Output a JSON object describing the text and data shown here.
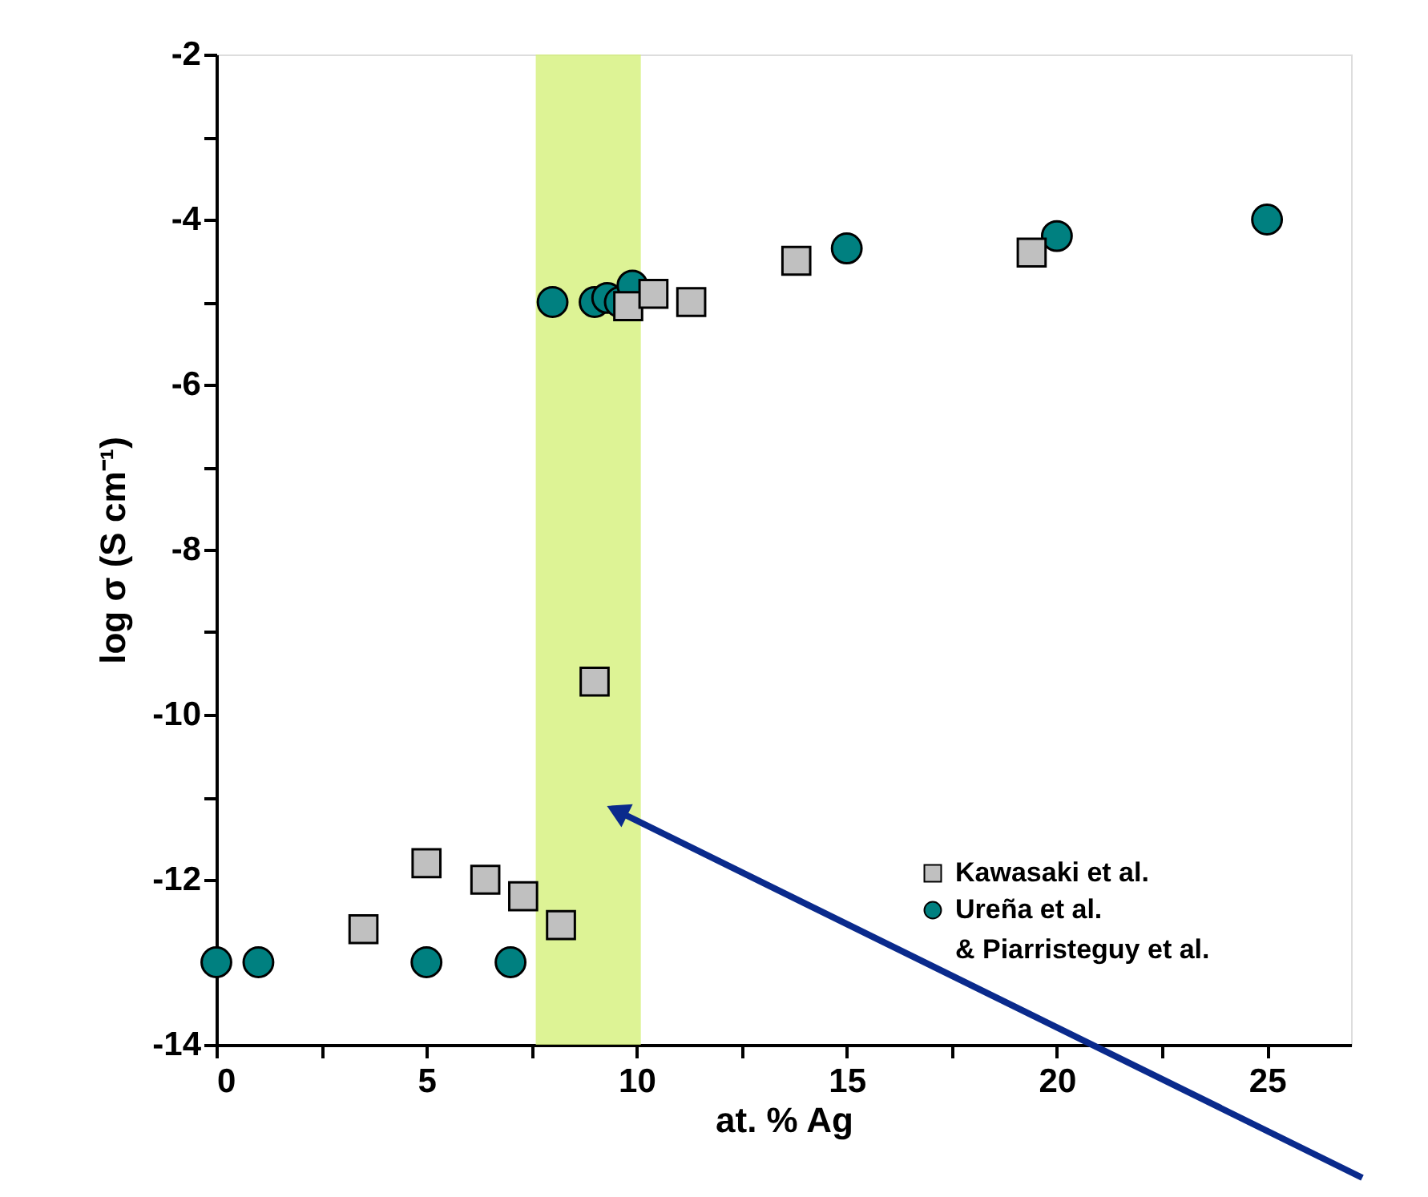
{
  "chart_data": {
    "type": "scatter",
    "xlabel": "at. % Ag",
    "ylabel": "log σ (S cm⁻¹)",
    "xlim": [
      0,
      27
    ],
    "ylim": [
      -14,
      -2
    ],
    "xticks": [
      0,
      {
        "value": 2.5,
        "label": null
      },
      5,
      {
        "value": 7.5,
        "label": null
      },
      10,
      {
        "value": 12.5,
        "label": null
      },
      15,
      {
        "value": 17.5,
        "label": null
      },
      20,
      {
        "value": 22.5,
        "label": null
      },
      25
    ],
    "yticks": [
      -14,
      {
        "value": -13,
        "label": null
      },
      -12,
      {
        "value": -11,
        "label": null
      },
      -10,
      {
        "value": -9,
        "label": null
      },
      -8,
      {
        "value": -7,
        "label": null
      },
      -6,
      {
        "value": -5,
        "label": null
      },
      -4,
      {
        "value": -3,
        "label": null
      },
      -2
    ],
    "grid": false,
    "legend": "bottom right",
    "bands": [
      {
        "axis": "x",
        "from": 7.6,
        "to": 10.1,
        "color": "#d4f07a"
      }
    ],
    "series": [
      {
        "name": "Kawasaki et al.",
        "color": "#c0c0c0",
        "marker": "square",
        "x": [
          3.5,
          5.0,
          6.4,
          7.3,
          8.2,
          9.0,
          9.8,
          10.4,
          11.3,
          13.8,
          19.4
        ],
        "values": [
          -12.6,
          -11.8,
          -12.0,
          -12.2,
          -12.55,
          -9.6,
          -5.05,
          -4.9,
          -5.0,
          -4.5,
          -4.4
        ]
      },
      {
        "name": "Ureña et al.\n& Piarristeguy et al.",
        "color": "#008080",
        "marker": "circle",
        "x": [
          0,
          1,
          5,
          7,
          8,
          9,
          9.3,
          9.6,
          9.9,
          15,
          20,
          25
        ],
        "values": [
          -13,
          -13,
          -13,
          -13,
          -5.0,
          -5.0,
          -4.95,
          -5.0,
          -4.8,
          -4.35,
          -4.2,
          -4.0
        ]
      }
    ]
  }
}
